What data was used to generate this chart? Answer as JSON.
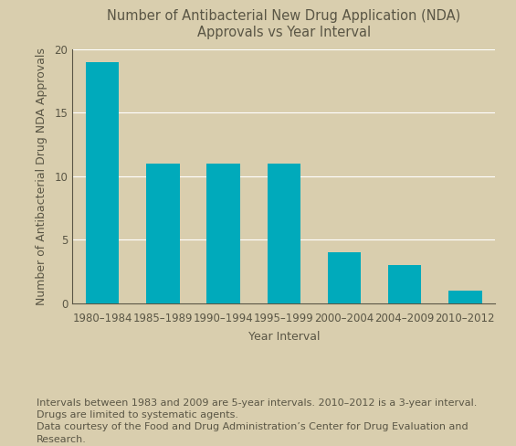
{
  "title": "Number of Antibacterial New Drug Application (NDA)\nApprovals vs Year Interval",
  "xlabel": "Year Interval",
  "ylabel": "Number of Antibacterial Drug NDA Approvals",
  "categories": [
    "1980–1984",
    "1985–1989",
    "1990–1994",
    "1995–1999",
    "2000–2004",
    "2004–2009",
    "2010–2012"
  ],
  "values": [
    19,
    11,
    11,
    11,
    4,
    3,
    1
  ],
  "bar_color": "#00AABB",
  "background_color": "#D9CEAE",
  "plot_bg_color": "#D9CEAE",
  "ylim": [
    0,
    20
  ],
  "yticks": [
    0,
    5,
    10,
    15,
    20
  ],
  "grid_color": "#FFFFFF",
  "title_fontsize": 10.5,
  "axis_label_fontsize": 9,
  "tick_fontsize": 8.5,
  "footnote": "Intervals between 1983 and 2009 are 5-year intervals. 2010–2012 is a 3-year interval.\nDrugs are limited to systematic agents.\nData courtesy of the Food and Drug Administration’s Center for Drug Evaluation and\nResearch.",
  "footnote_fontsize": 8,
  "text_color": "#5A5645"
}
